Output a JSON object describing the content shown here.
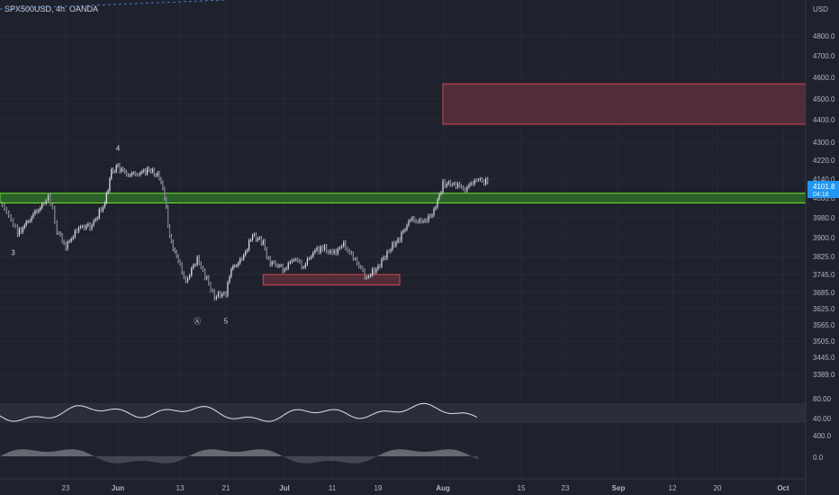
{
  "header": {
    "symbol": "SPX500USD, 4h, OANDA"
  },
  "colors": {
    "background": "#1e222d",
    "price_line": "#b2b5be",
    "support_fill": "#2e6b2a",
    "support_border": "#6ee629",
    "resistance_fill": "#5a2f3b",
    "resistance_border": "#d9444e",
    "price_tag": "#2196f3"
  },
  "chart_data": [
    {
      "type": "line",
      "name": "price",
      "y_axis": {
        "currency": "USD",
        "ticks": [
          "4800.0",
          "4700.0",
          "4600.0",
          "4500.0",
          "4400.0",
          "4300.0",
          "4220.0",
          "4140.0",
          "4060.0",
          "3980.0",
          "3900.0",
          "3825.0",
          "3745.0",
          "3685.0",
          "3625.0",
          "3565.0",
          "3505.0",
          "3445.0",
          "3389.0"
        ]
      },
      "x_axis": {
        "ticks": [
          "23",
          "Jun",
          "13",
          "21",
          "Jul",
          "11",
          "19",
          "Aug",
          "15",
          "23",
          "Sep",
          "12",
          "20",
          "Oct"
        ]
      },
      "last_price_tag": {
        "value": "4101.8",
        "countdown": "04:18"
      },
      "waves": [
        {
          "label": "3",
          "x": "May 11",
          "y": 3880
        },
        {
          "label": "4",
          "x": "Jun 1",
          "y": 4215
        },
        {
          "label": "Ⓐ",
          "x": "Jun 16",
          "y": 3610
        },
        {
          "label": "5",
          "x": "Jun 21",
          "y": 3610
        }
      ],
      "zones": [
        {
          "kind": "support",
          "price_from": 4040,
          "price_to": 4080,
          "start": "May 8",
          "end": "Oct 8"
        },
        {
          "kind": "resistance",
          "price_from": 4380,
          "price_to": 4570,
          "start": "Aug 1",
          "end": "Oct 8"
        },
        {
          "kind": "resistance",
          "price_from": 3710,
          "price_to": 3745,
          "start": "Jun 28",
          "end": "Jul 23"
        }
      ]
    },
    {
      "type": "line",
      "name": "oscillator",
      "y_axis": {
        "ticks": [
          "80.00",
          "40.00"
        ]
      }
    },
    {
      "type": "bar",
      "name": "histogram",
      "y_axis": {
        "ticks": [
          "400.0",
          "0.0"
        ]
      }
    }
  ]
}
